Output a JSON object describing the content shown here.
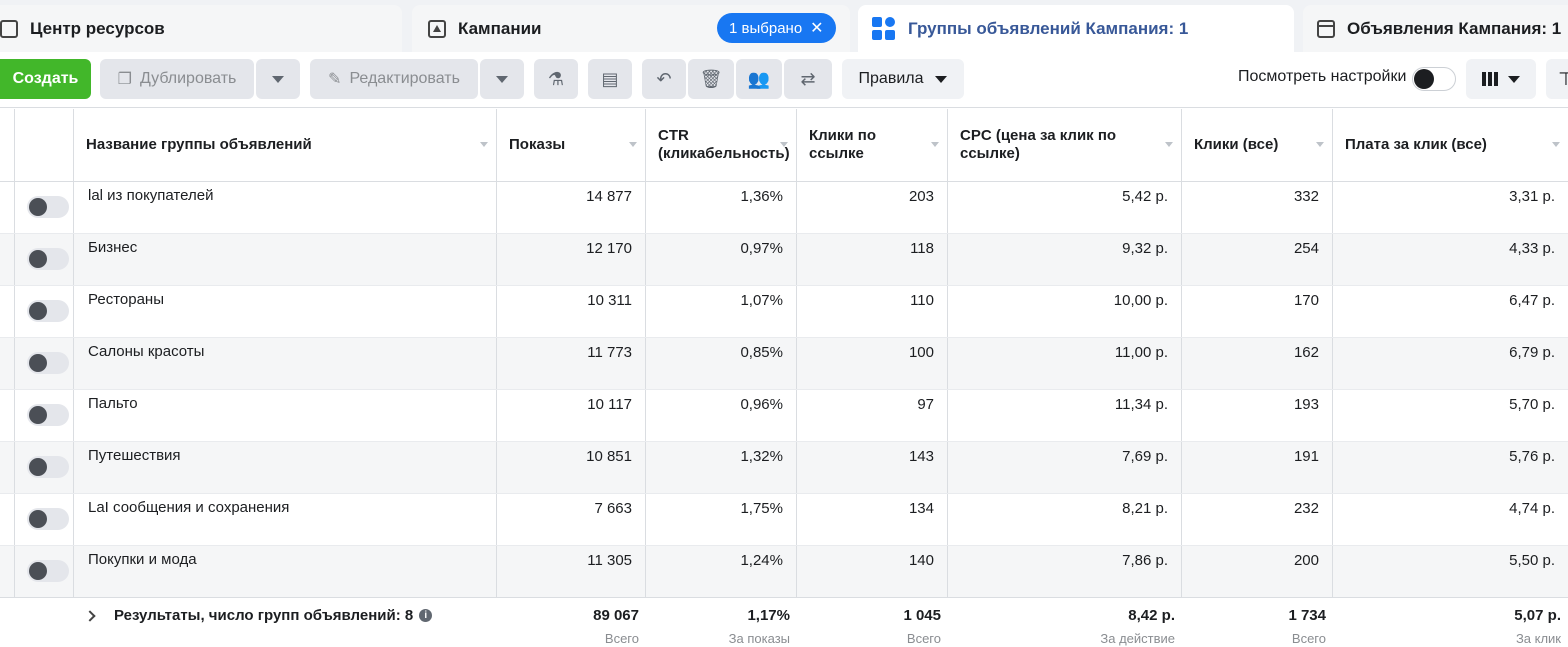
{
  "tabs": {
    "resources": "Центр ресурсов",
    "campaigns": "Кампании",
    "selected_badge": "1 выбрано",
    "adsets": "Группы объявлений Кампания: 1",
    "ads": "Объявления Кампания: 1"
  },
  "toolbar": {
    "create": "Создать",
    "duplicate": "Дублировать",
    "edit": "Редактировать",
    "rules": "Правила",
    "view_settings": "Посмотреть настройки"
  },
  "columns": {
    "name": "Название группы объявлений",
    "impressions": "Показы",
    "ctr": "CTR (кликабельность)",
    "link_clicks": "Клики по ссылке",
    "cpc": "CPC (цена за клик по ссылке)",
    "clicks_all": "Клики (все)",
    "cpc_all": "Плата за клик (все)"
  },
  "rows": [
    {
      "name": "lal из покупателей",
      "impressions": "14 877",
      "ctr": "1,36%",
      "link_clicks": "203",
      "cpc": "5,42 р.",
      "clicks_all": "332",
      "cpc_all": "3,31 р."
    },
    {
      "name": "Бизнес",
      "impressions": "12 170",
      "ctr": "0,97%",
      "link_clicks": "118",
      "cpc": "9,32 р.",
      "clicks_all": "254",
      "cpc_all": "4,33 р."
    },
    {
      "name": "Рестораны",
      "impressions": "10 311",
      "ctr": "1,07%",
      "link_clicks": "110",
      "cpc": "10,00 р.",
      "clicks_all": "170",
      "cpc_all": "6,47 р."
    },
    {
      "name": "Салоны красоты",
      "impressions": "11 773",
      "ctr": "0,85%",
      "link_clicks": "100",
      "cpc": "11,00 р.",
      "clicks_all": "162",
      "cpc_all": "6,79 р."
    },
    {
      "name": "Пальто",
      "impressions": "10 117",
      "ctr": "0,96%",
      "link_clicks": "97",
      "cpc": "11,34 р.",
      "clicks_all": "193",
      "cpc_all": "5,70 р."
    },
    {
      "name": "Путешествия",
      "impressions": "10 851",
      "ctr": "1,32%",
      "link_clicks": "143",
      "cpc": "7,69 р.",
      "clicks_all": "191",
      "cpc_all": "5,76 р."
    },
    {
      "name": "LaI сообщения и сохранения",
      "impressions": "7 663",
      "ctr": "1,75%",
      "link_clicks": "134",
      "cpc": "8,21 р.",
      "clicks_all": "232",
      "cpc_all": "4,74 р."
    },
    {
      "name": "Покупки и мода",
      "impressions": "11 305",
      "ctr": "1,24%",
      "link_clicks": "140",
      "cpc": "7,86 р.",
      "clicks_all": "200",
      "cpc_all": "5,50 р."
    }
  ],
  "totals": {
    "label": "Результаты, число групп объявлений: 8",
    "impressions": "89 067",
    "impressions_sub": "Всего",
    "ctr": "1,17%",
    "ctr_sub": "За показы",
    "link_clicks": "1 045",
    "link_clicks_sub": "Всего",
    "cpc": "8,42 р.",
    "cpc_sub": "За действие",
    "clicks_all": "1 734",
    "clicks_all_sub": "Всего",
    "cpc_all": "5,07 р.",
    "cpc_all_sub": "За клик"
  },
  "colors": {
    "primary": "#42b72a",
    "accent": "#1877f2",
    "link": "#385898"
  }
}
